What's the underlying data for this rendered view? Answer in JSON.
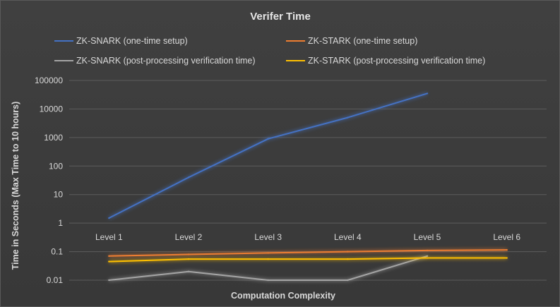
{
  "chart_data": {
    "type": "line",
    "title": "Verifer Time",
    "xlabel": "Computation Complexity",
    "ylabel": "Time in Seconds (Max Time to 10 hours)",
    "yscale": "log",
    "ylim": [
      0.01,
      100000
    ],
    "y_ticks": [
      "0.01",
      "0.1",
      "1",
      "10",
      "100",
      "1000",
      "10000",
      "100000"
    ],
    "categories": [
      "Level 1",
      "Level 2",
      "Level 3",
      "Level 4",
      "Level 5",
      "Level 6"
    ],
    "grid": true,
    "legend_position": "top",
    "series": [
      {
        "name": "ZK-SNARK (one-time setup)",
        "color": "#4472c4",
        "values": [
          1.5,
          40,
          900,
          5000,
          35000,
          null
        ]
      },
      {
        "name": "ZK-STARK (one-time setup)",
        "color": "#ed7d31",
        "values": [
          0.07,
          0.08,
          0.09,
          0.1,
          0.11,
          0.115
        ]
      },
      {
        "name": "ZK-SNARK (post-processing verification time)",
        "color": "#a5a5a5",
        "values": [
          0.01,
          0.02,
          0.01,
          0.01,
          0.07,
          null
        ]
      },
      {
        "name": "ZK-STARK (post-processing verification time)",
        "color": "#ffc000",
        "values": [
          0.045,
          0.055,
          0.055,
          0.055,
          0.06,
          0.06
        ]
      }
    ]
  }
}
